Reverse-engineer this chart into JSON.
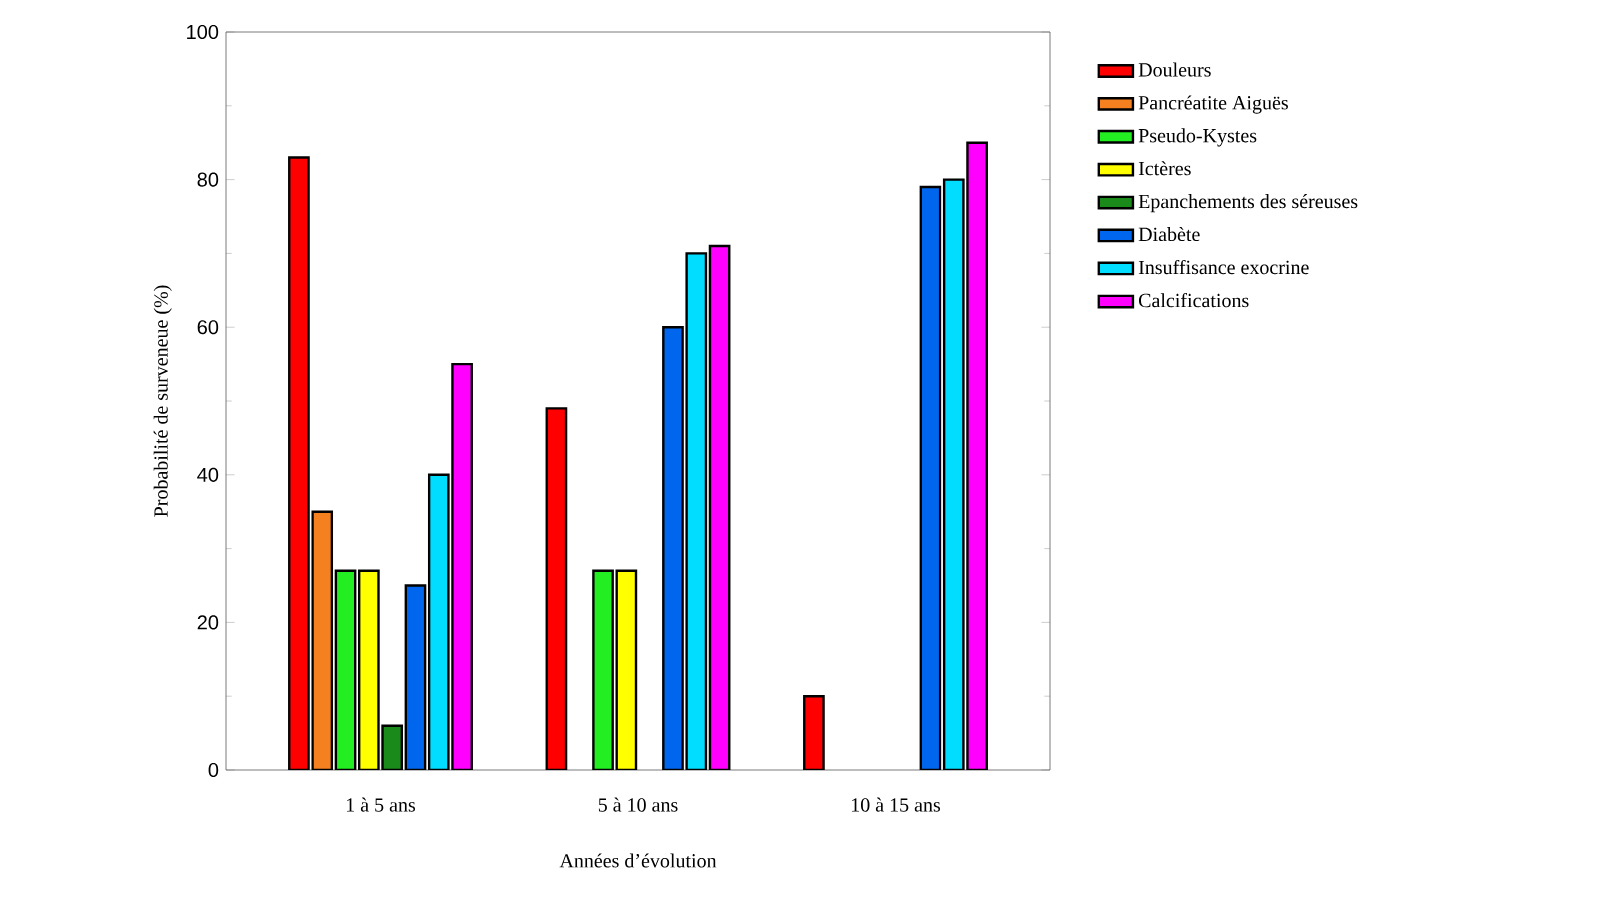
{
  "chart_data": {
    "type": "bar",
    "xlabel": "Années d’évolution",
    "ylabel": "Probabilité de surveneue (%)",
    "categories": [
      "1 à 5 ans",
      "5 à 10 ans",
      "10 à 15 ans"
    ],
    "series": [
      {
        "name": "Douleurs",
        "color": "#ff0000",
        "values": [
          83,
          49,
          10
        ]
      },
      {
        "name": "Pancréatite Aiguës",
        "color": "#f58020",
        "values": [
          35,
          null,
          null
        ]
      },
      {
        "name": "Pseudo-Kystes",
        "color": "#22ee22",
        "values": [
          27,
          27,
          null
        ]
      },
      {
        "name": "Ictères",
        "color": "#ffff00",
        "values": [
          27,
          27,
          null
        ]
      },
      {
        "name": "Epanchements des séreuses",
        "color": "#1a8a1a",
        "values": [
          6,
          null,
          null
        ]
      },
      {
        "name": "Diabète",
        "color": "#0066ee",
        "values": [
          25,
          60,
          79
        ]
      },
      {
        "name": "Insuffisance exocrine",
        "color": "#00ddff",
        "values": [
          40,
          70,
          80
        ]
      },
      {
        "name": "Calcifications",
        "color": "#ff00ff",
        "values": [
          55,
          71,
          85
        ]
      }
    ],
    "ylim": [
      0,
      100
    ],
    "yticks": [
      0,
      20,
      40,
      60,
      80,
      100
    ],
    "grid": false,
    "legend": "right"
  }
}
